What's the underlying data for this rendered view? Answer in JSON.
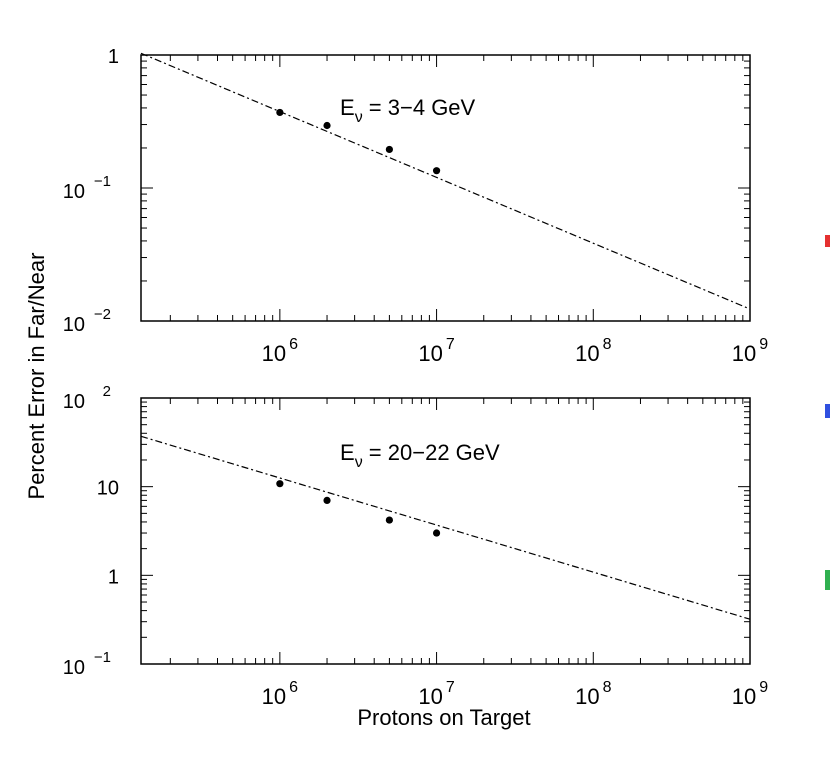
{
  "chart_data": [
    {
      "type": "scatter",
      "xscale": "log",
      "yscale": "log",
      "xlim": [
        130000,
        1000000000
      ],
      "ylim": [
        0.01,
        1
      ],
      "grid": false,
      "annotation": {
        "main": "E",
        "sub": "ν",
        "rest": " = 3−4 GeV"
      },
      "xticks": [
        {
          "value": 1000000,
          "base": "10",
          "exp": "6"
        },
        {
          "value": 10000000,
          "base": "10",
          "exp": "7"
        },
        {
          "value": 100000000,
          "base": "10",
          "exp": "8"
        },
        {
          "value": 1000000000,
          "base": "10",
          "exp": "9"
        }
      ],
      "yticks": [
        {
          "value": 1,
          "base": "1",
          "exp": ""
        },
        {
          "value": 0.1,
          "base": "10",
          "exp": "−1"
        },
        {
          "value": 0.01,
          "base": "10",
          "exp": "−2"
        }
      ],
      "points": {
        "x": [
          1000000,
          2000000,
          5000000,
          10000000
        ],
        "y": [
          0.37,
          0.295,
          0.195,
          0.135
        ]
      },
      "fit_line": {
        "x": [
          130000,
          1000000000
        ],
        "y": [
          1.03,
          0.0123
        ]
      }
    },
    {
      "type": "scatter",
      "xscale": "log",
      "yscale": "log",
      "xlim": [
        130000,
        1000000000
      ],
      "ylim": [
        0.1,
        100
      ],
      "grid": false,
      "annotation": {
        "main": "E",
        "sub": "ν",
        "rest": " = 20−22 GeV"
      },
      "xticks": [
        {
          "value": 1000000,
          "base": "10",
          "exp": "6"
        },
        {
          "value": 10000000,
          "base": "10",
          "exp": "7"
        },
        {
          "value": 100000000,
          "base": "10",
          "exp": "8"
        },
        {
          "value": 1000000000,
          "base": "10",
          "exp": "9"
        }
      ],
      "yticks": [
        {
          "value": 100,
          "base": "10",
          "exp": "2"
        },
        {
          "value": 10,
          "base": "10",
          "exp": ""
        },
        {
          "value": 1,
          "base": "1",
          "exp": ""
        },
        {
          "value": 0.1,
          "base": "10",
          "exp": "−1"
        }
      ],
      "points": {
        "x": [
          1000000,
          2000000,
          5000000,
          10000000
        ],
        "y": [
          10.8,
          7.0,
          4.2,
          3.0
        ]
      },
      "fit_line": {
        "x": [
          130000,
          1000000000
        ],
        "y": [
          37,
          0.32
        ]
      }
    }
  ],
  "xlabel": "Protons on Target",
  "ylabel": "Percent Error in Far/Near",
  "colors": {
    "axis": "#000000",
    "point": "#000000",
    "edge_marks": [
      "#e53030",
      "#3050e0",
      "#30b050"
    ]
  }
}
